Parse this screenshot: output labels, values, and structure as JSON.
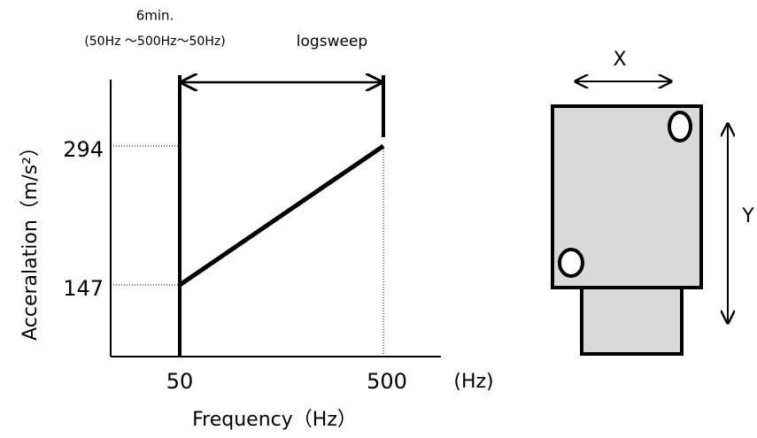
{
  "duration": "6min.",
  "sweep_range": "(50Hz ～500Hz～50Hz)",
  "sweep_type": "logsweep",
  "y_axis_title": "Acceralation（m/s²）",
  "y_labels": [
    "294",
    "147"
  ],
  "x_labels": [
    "50",
    "500"
  ],
  "x_unit": "(Hz)",
  "x_axis_title": "Frequency（Hz）",
  "directions": [
    "X",
    "Y"
  ]
}
